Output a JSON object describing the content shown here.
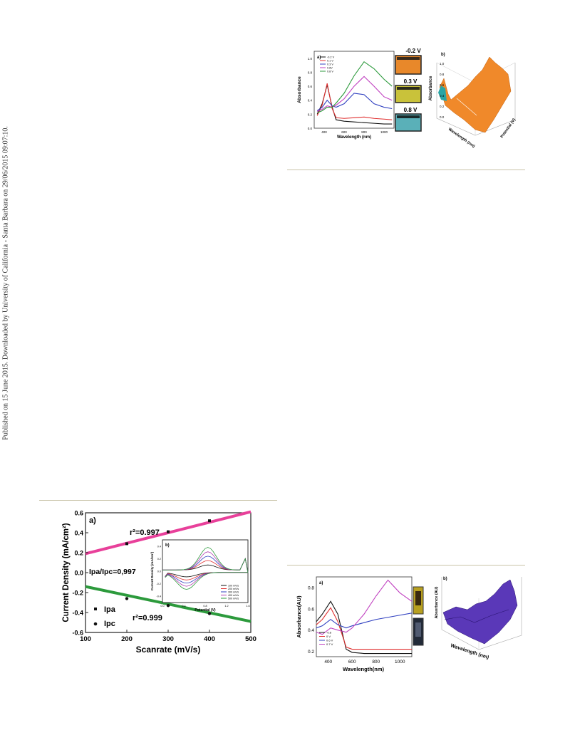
{
  "sidebar": {
    "text": "Published on 15 June 2015. Downloaded by University of California - Santa Barbara on 29/06/2015 09:07:10."
  },
  "colors": {
    "rule": "#c9c3a8",
    "orange": "#f0892a",
    "teal": "#2aa5a5",
    "purple": "#5a38b8",
    "magenta": "#e8409a",
    "green": "#2c9a3c"
  },
  "figure_top": {
    "panel_a": {
      "label": "a)",
      "xlabel": "Wavelength (nm)",
      "ylabel": "Absorbance",
      "xticks": [
        "400",
        "600",
        "800",
        "1000"
      ],
      "yticks": [
        "0.0",
        "0.2",
        "0.4",
        "0.6",
        "0.8",
        "1.0"
      ],
      "legend": [
        "-0.2 V",
        "0.1 V",
        "0.3 V",
        "0.8V",
        "0.8 V"
      ]
    },
    "photos": [
      {
        "label": "-0.2 V",
        "color": "#e8882a"
      },
      {
        "label": "0.3 V",
        "color": "#c9c23a"
      },
      {
        "label": "0.8 V",
        "color": "#5ab0b8"
      }
    ],
    "panel_b": {
      "label": "b)",
      "zlabel": "Absorbance",
      "xlabel": "Wavelength (nm)",
      "ylabel": "Potential (V)",
      "zticks": [
        "0.0",
        "0.2",
        "0.4",
        "0.6",
        "0.8",
        "1.0"
      ]
    }
  },
  "figure_mid": {
    "label": "a)",
    "xlabel": "Scanrate (mV/s)",
    "ylabel": "Current Density  (mA/cm²)",
    "xticks": [
      "100",
      "200",
      "300",
      "400",
      "500"
    ],
    "yticks": [
      "0.6",
      "0.4",
      "0.2",
      "0.0",
      "-0.2",
      "-0.4",
      "-0.6"
    ],
    "r2_top": "r²=0.997",
    "r2_bottom": "r²=0.999",
    "ratio": "Ipa/Ipc=0,997",
    "legend": [
      "Ipa",
      "Ipc"
    ],
    "inset": {
      "label": "b)",
      "xlabel": "Potential (V)",
      "ylabel": "Current Density (mA/cm²)",
      "xticks": [
        "0.0",
        "0.4",
        "0.8",
        "1.2",
        "1.6"
      ],
      "yticks": [
        "0.4",
        "0.2",
        "0.0",
        "-0.2",
        "-0.4"
      ],
      "legend": [
        "100 mV/s",
        "200 mV/s",
        "300 mV/s",
        "400 mV/s",
        "500 mV/s"
      ]
    }
  },
  "figure_bottom": {
    "panel_a": {
      "label": "a)",
      "xlabel": "Wavelength(nm)",
      "ylabel": "Absorbance(AU)",
      "xticks": [
        "400",
        "600",
        "800",
        "1000"
      ],
      "yticks": [
        "0.2",
        "0.4",
        "0.6",
        "0.8"
      ],
      "legend": [
        "-0.8",
        "0 V",
        "0.6 V",
        "0.7 V"
      ]
    },
    "panel_b": {
      "label": "b)",
      "zlabel": "Absorbance (AU)",
      "xlabel": "Wavelength (nm)"
    }
  },
  "chart_data": [
    {
      "type": "line",
      "title": "",
      "xlabel": "Wavelength (nm)",
      "ylabel": "Absorbance",
      "xlim": [
        300,
        1100
      ],
      "ylim": [
        0,
        1.1
      ],
      "series": [
        {
          "name": "-0.2 V",
          "x": [
            330,
            380,
            430,
            480,
            520,
            600,
            700,
            800,
            900,
            1000,
            1080
          ],
          "y": [
            0.2,
            0.35,
            0.62,
            0.3,
            0.12,
            0.1,
            0.09,
            0.08,
            0.07,
            0.06,
            0.06
          ]
        },
        {
          "name": "0.1 V",
          "x": [
            330,
            380,
            430,
            480,
            520,
            600,
            700,
            800,
            900,
            1000,
            1080
          ],
          "y": [
            0.18,
            0.33,
            0.64,
            0.28,
            0.15,
            0.14,
            0.15,
            0.16,
            0.14,
            0.13,
            0.12
          ]
        },
        {
          "name": "0.3 V",
          "x": [
            330,
            380,
            430,
            480,
            520,
            600,
            700,
            800,
            900,
            1000,
            1080
          ],
          "y": [
            0.25,
            0.3,
            0.4,
            0.32,
            0.3,
            0.35,
            0.5,
            0.48,
            0.35,
            0.3,
            0.28
          ]
        },
        {
          "name": "0.8V",
          "x": [
            330,
            380,
            430,
            480,
            520,
            600,
            700,
            800,
            900,
            1000,
            1080
          ],
          "y": [
            0.24,
            0.27,
            0.32,
            0.3,
            0.33,
            0.42,
            0.6,
            0.74,
            0.6,
            0.45,
            0.4
          ]
        },
        {
          "name": "0.8 V",
          "x": [
            330,
            380,
            430,
            480,
            520,
            600,
            700,
            800,
            900,
            1000,
            1080
          ],
          "y": [
            0.22,
            0.25,
            0.3,
            0.3,
            0.36,
            0.5,
            0.75,
            0.95,
            0.85,
            0.7,
            0.6
          ]
        }
      ]
    },
    {
      "type": "scatter",
      "title": "",
      "xlabel": "Scanrate (mV/s)",
      "ylabel": "Current Density  (mA/cm²)",
      "xlim": [
        100,
        500
      ],
      "ylim": [
        -0.6,
        0.6
      ],
      "series": [
        {
          "name": "Ipa",
          "x": [
            200,
            300,
            400
          ],
          "y": [
            0.29,
            0.41,
            0.52
          ]
        },
        {
          "name": "Ipc",
          "x": [
            200,
            300,
            400
          ],
          "y": [
            -0.26,
            -0.33,
            -0.41
          ]
        }
      ],
      "fits": [
        {
          "from": [
            100,
            0.19
          ],
          "to": [
            500,
            0.61
          ]
        },
        {
          "from": [
            100,
            -0.14
          ],
          "to": [
            500,
            -0.49
          ]
        }
      ]
    },
    {
      "type": "line",
      "title": "",
      "xlabel": "Wavelength(nm)",
      "ylabel": "Absorbance(AU)",
      "xlim": [
        300,
        1100
      ],
      "ylim": [
        0.15,
        0.9
      ],
      "series": [
        {
          "name": "-0.8",
          "x": [
            300,
            350,
            420,
            480,
            550,
            600,
            700,
            800,
            900,
            1000,
            1100
          ],
          "y": [
            0.48,
            0.55,
            0.67,
            0.55,
            0.22,
            0.19,
            0.18,
            0.18,
            0.18,
            0.18,
            0.18
          ]
        },
        {
          "name": "0 V",
          "x": [
            300,
            350,
            420,
            480,
            550,
            600,
            700,
            800,
            900,
            1000,
            1100
          ],
          "y": [
            0.45,
            0.5,
            0.61,
            0.48,
            0.24,
            0.22,
            0.22,
            0.22,
            0.22,
            0.22,
            0.22
          ]
        },
        {
          "name": "0.6 V",
          "x": [
            300,
            350,
            420,
            480,
            550,
            600,
            700,
            800,
            900,
            1000,
            1100
          ],
          "y": [
            0.42,
            0.44,
            0.5,
            0.45,
            0.42,
            0.44,
            0.47,
            0.5,
            0.52,
            0.54,
            0.56
          ]
        },
        {
          "name": "0.7 V",
          "x": [
            300,
            350,
            420,
            480,
            550,
            600,
            700,
            800,
            900,
            1000,
            1100
          ],
          "y": [
            0.38,
            0.36,
            0.42,
            0.4,
            0.38,
            0.42,
            0.55,
            0.72,
            0.87,
            0.75,
            0.67
          ]
        }
      ]
    }
  ]
}
